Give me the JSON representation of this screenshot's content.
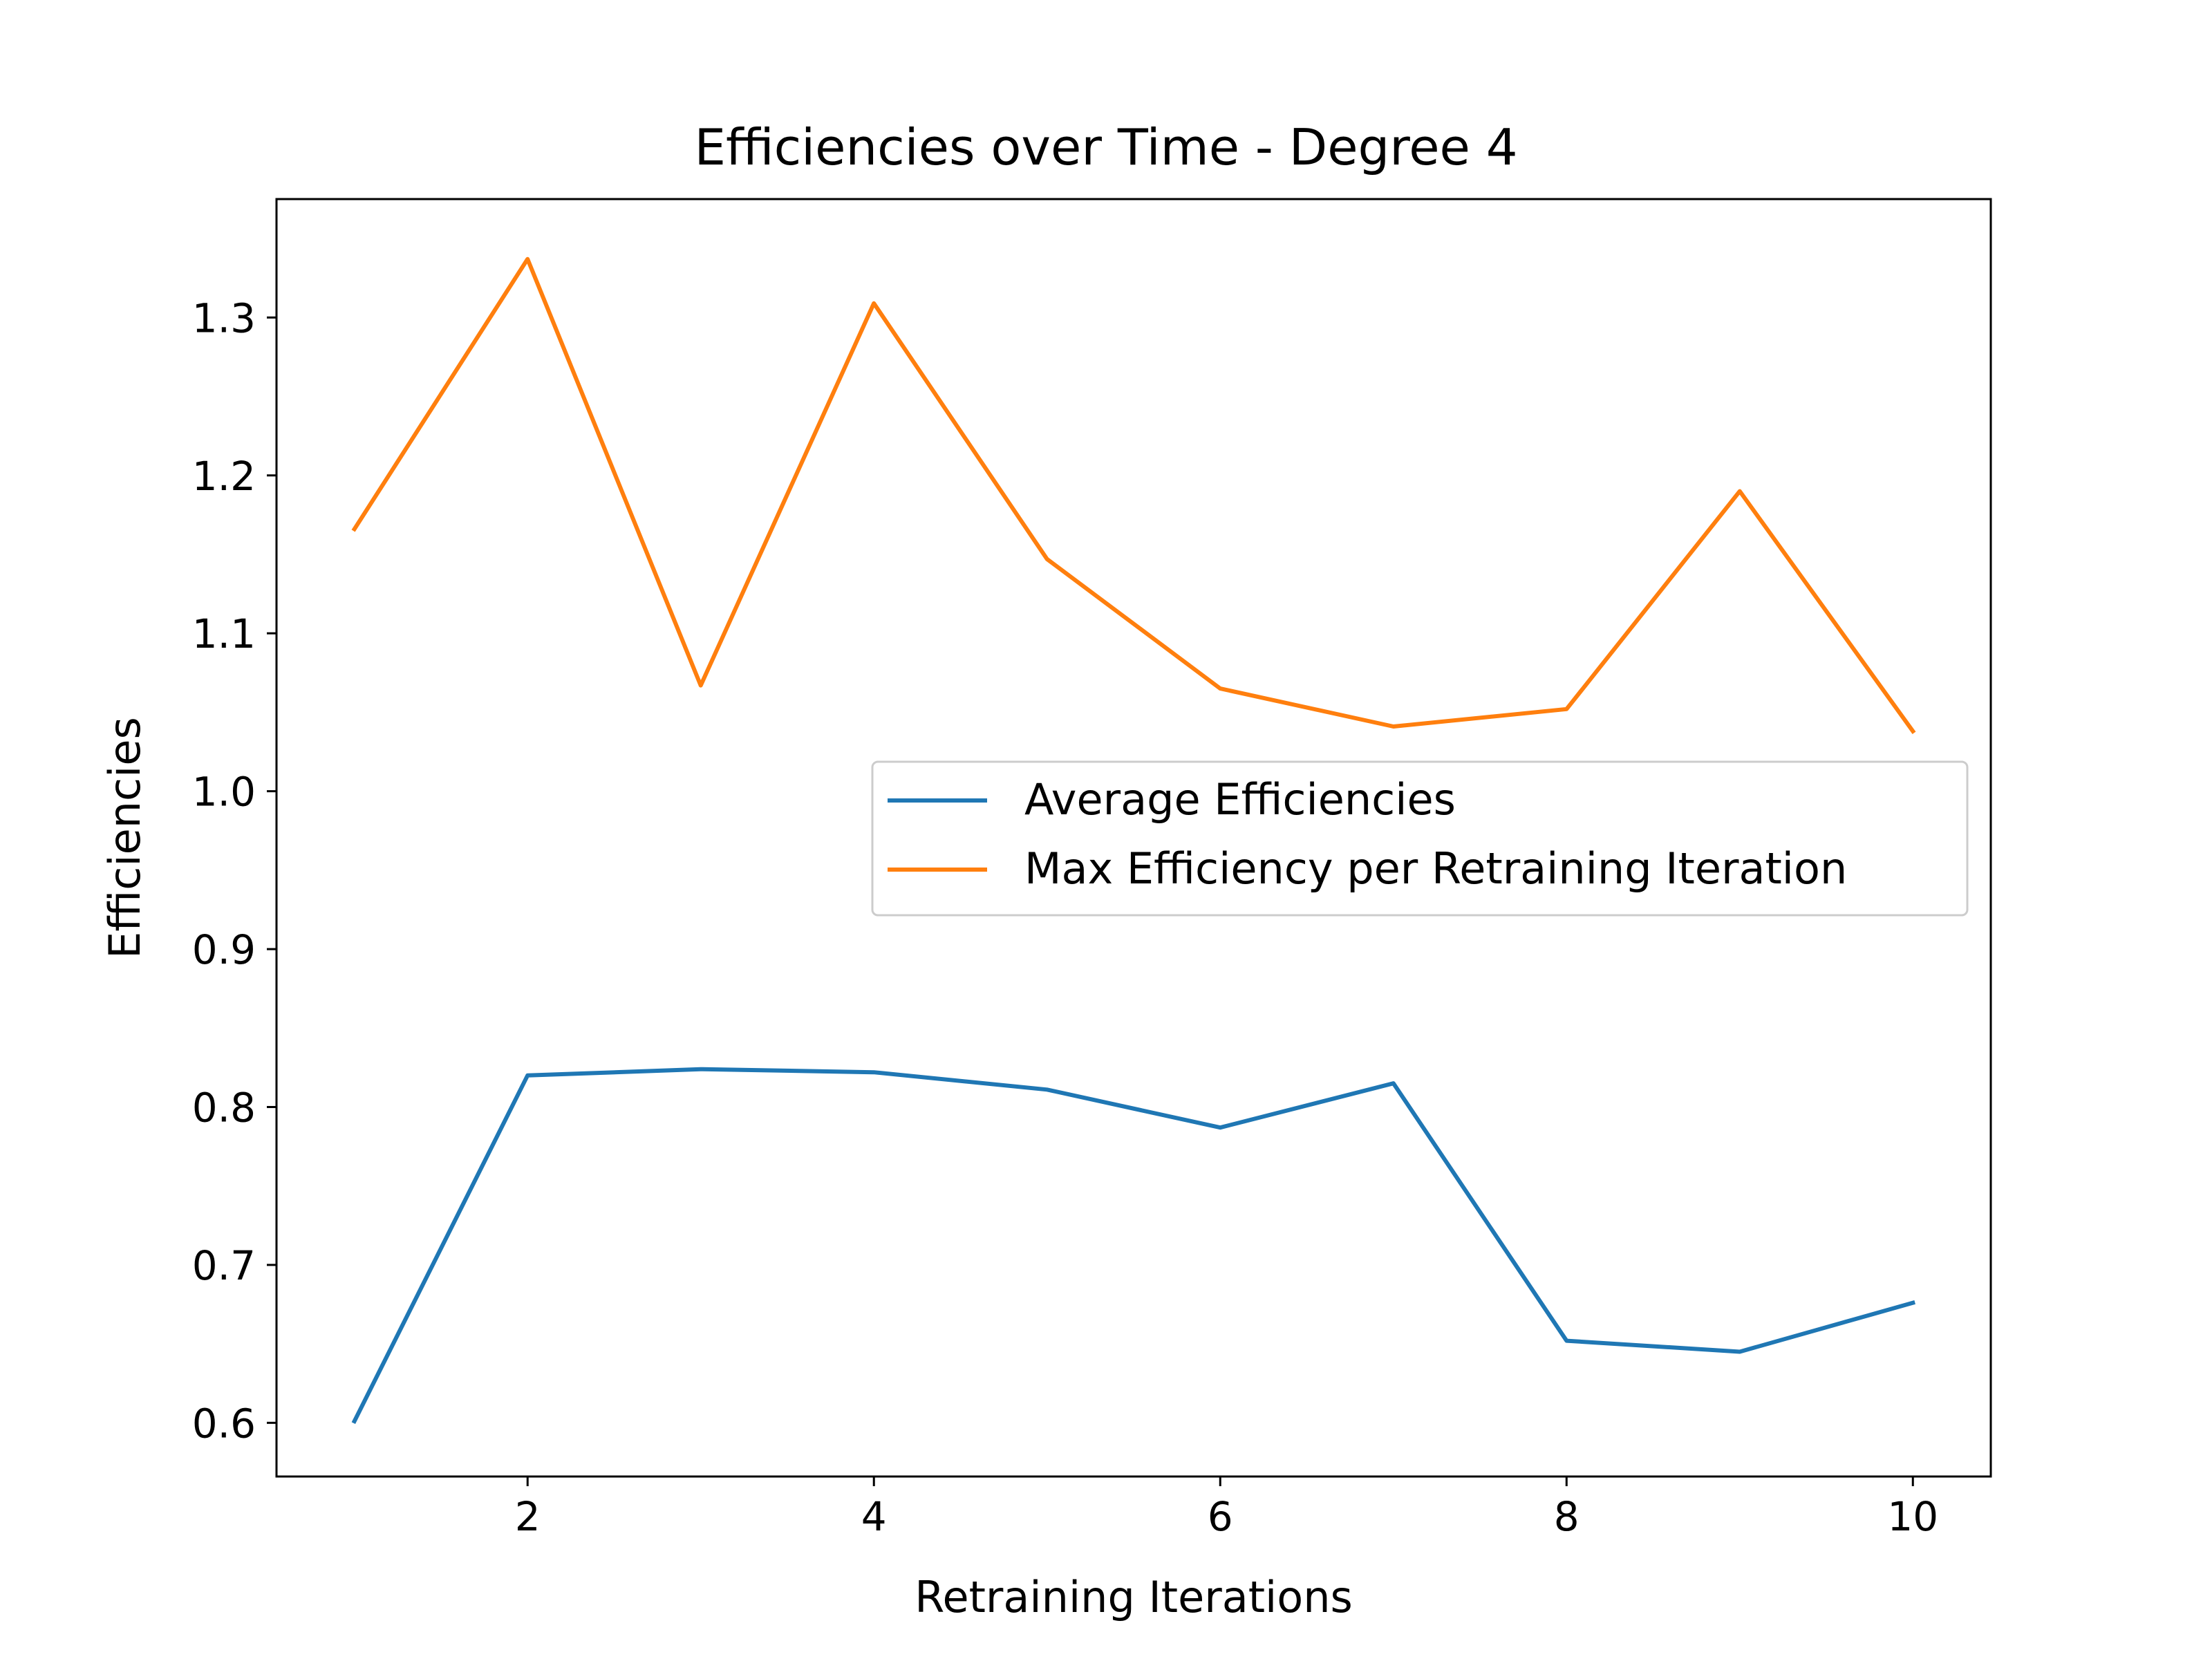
{
  "chart_data": {
    "type": "line",
    "title": "Efficiencies over Time - Degree 4",
    "xlabel": "Retraining Iterations",
    "ylabel": "Efficiencies",
    "x": [
      1,
      2,
      3,
      4,
      5,
      6,
      7,
      8,
      9,
      10
    ],
    "xlim": [
      0.55,
      10.45
    ],
    "ylim": [
      0.566,
      1.375
    ],
    "xticks": [
      2,
      4,
      6,
      8,
      10
    ],
    "xtick_labels": [
      "2",
      "4",
      "6",
      "8",
      "10"
    ],
    "yticks": [
      0.6,
      0.7,
      0.8,
      0.9,
      1.0,
      1.1,
      1.2,
      1.3
    ],
    "ytick_labels": [
      "0.6",
      "0.7",
      "0.8",
      "0.9",
      "1.0",
      "1.1",
      "1.2",
      "1.3"
    ],
    "grid": false,
    "legend_position": "center-right",
    "series": [
      {
        "name": "Average Efficiencies",
        "color": "#1f77b4",
        "values": [
          0.601,
          0.82,
          0.824,
          0.822,
          0.811,
          0.787,
          0.815,
          0.652,
          0.645,
          0.676
        ]
      },
      {
        "name": "Max Efficiency per Retraining Iteration",
        "color": "#ff7f0e",
        "values": [
          1.166,
          1.337,
          1.067,
          1.309,
          1.147,
          1.065,
          1.041,
          1.052,
          1.19,
          1.038
        ]
      }
    ]
  }
}
